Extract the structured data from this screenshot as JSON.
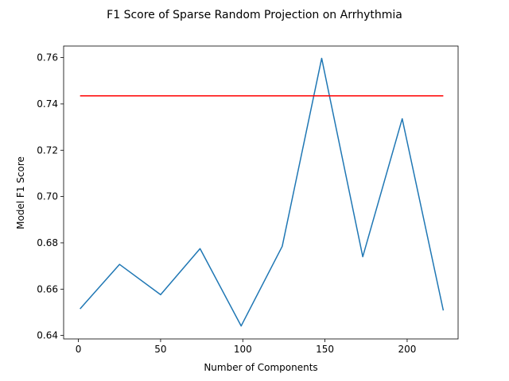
{
  "chart_data": {
    "type": "line",
    "title": "F1 Score of Sparse Random Projection on Arrhythmia",
    "xlabel": "Number of Components",
    "ylabel": "Model F1 Score",
    "xlim": [
      -9,
      231
    ],
    "ylim": [
      0.6385,
      0.765
    ],
    "xticks": [
      0,
      50,
      100,
      150,
      200
    ],
    "yticks": [
      0.64,
      0.66,
      0.68,
      0.7,
      0.72,
      0.74,
      0.76
    ],
    "ytick_labels": [
      "0.64",
      "0.66",
      "0.68",
      "0.70",
      "0.72",
      "0.74",
      "0.76"
    ],
    "grid": false,
    "legend": "none",
    "series": [
      {
        "color": "#1f77b4",
        "x": [
          1,
          25,
          50,
          74,
          99,
          124,
          148,
          173,
          197,
          222
        ],
        "y": [
          0.6515,
          0.6707,
          0.6576,
          0.6775,
          0.6441,
          0.6785,
          0.7597,
          0.674,
          0.7336,
          0.6508
        ]
      },
      {
        "color": "#ff0000",
        "x": [
          1,
          222
        ],
        "y": [
          0.7435,
          0.7435
        ]
      }
    ]
  }
}
